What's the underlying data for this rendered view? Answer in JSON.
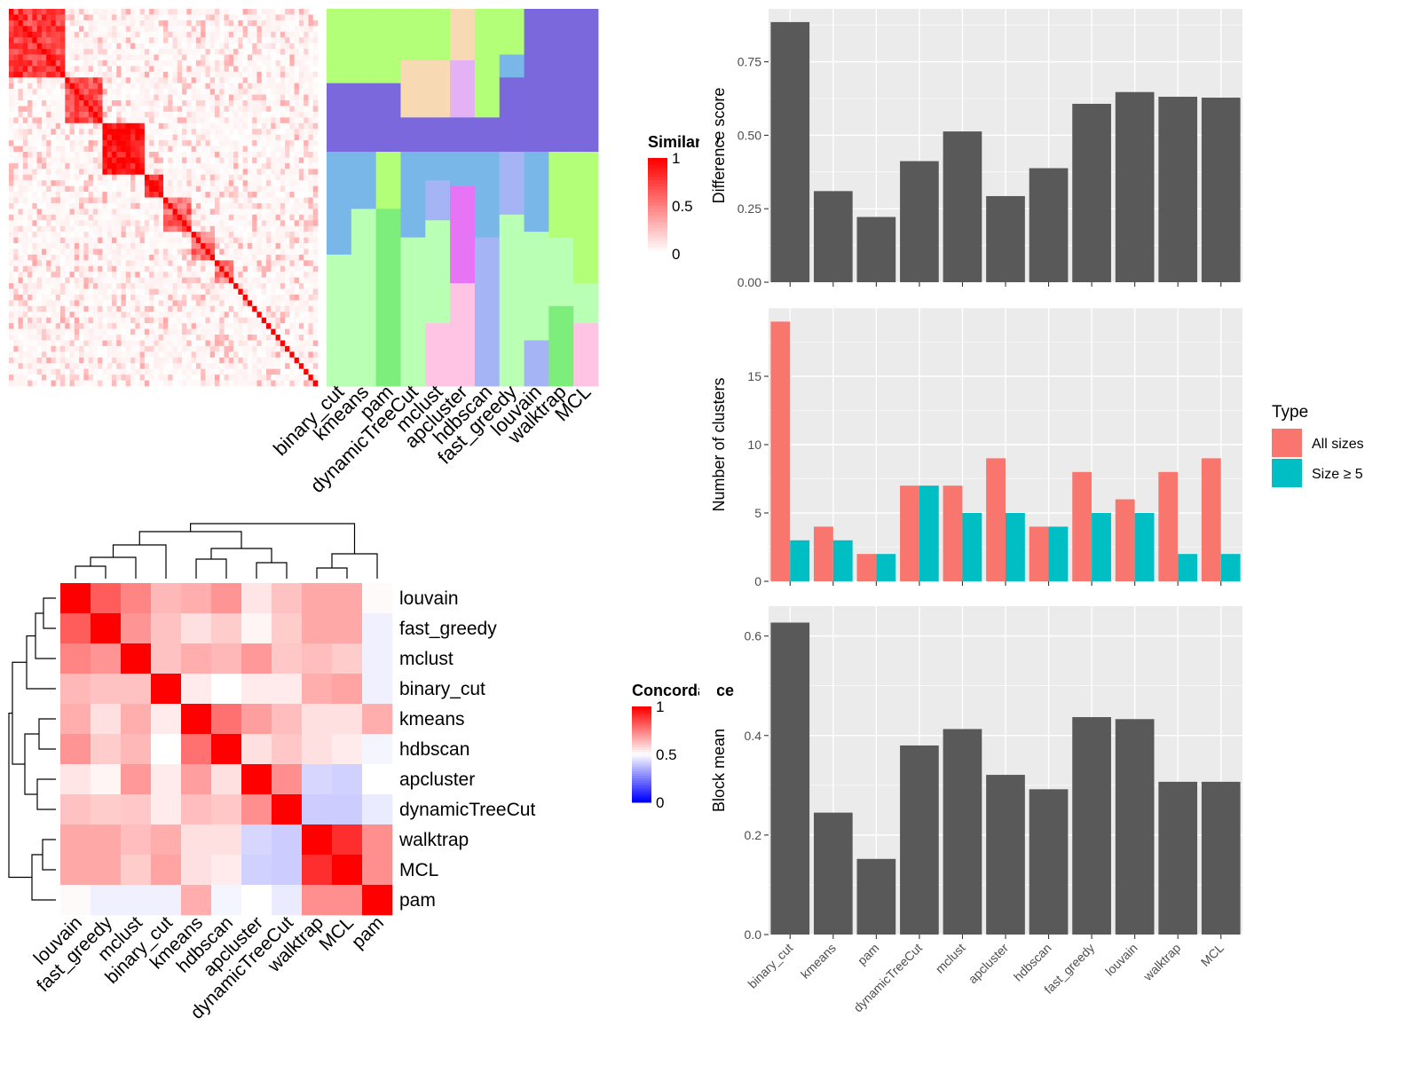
{
  "chart_data": [
    {
      "id": "similarity_heatmap",
      "type": "heatmap",
      "legend": {
        "title": "Similarity",
        "ticks": [
          1,
          0.5,
          0
        ],
        "colors": {
          "low": "#ffffff",
          "high": "#ff0000"
        }
      },
      "block_structure": [
        {
          "start": 0,
          "size": 12,
          "level": 0.75
        },
        {
          "start": 12,
          "size": 8,
          "level": 0.7
        },
        {
          "start": 20,
          "size": 9,
          "level": 0.95
        },
        {
          "start": 29,
          "size": 4,
          "level": 0.85
        },
        {
          "start": 33,
          "size": 6,
          "level": 0.6
        },
        {
          "start": 39,
          "size": 5,
          "level": 0.55
        },
        {
          "start": 44,
          "size": 4,
          "level": 0.5
        }
      ],
      "matrix_size": 66
    },
    {
      "id": "cluster_membership",
      "type": "heatmap",
      "columns": [
        "binary_cut",
        "kmeans",
        "pam",
        "dynamicTreeCut",
        "mclust",
        "apcluster",
        "hdbscan",
        "fast_greedy",
        "louvain",
        "walktrap",
        "MCL"
      ],
      "cluster_colors": [
        "#b3ff77",
        "#7b68dd",
        "#79b7e8",
        "#b9ffb4",
        "#f7d9b4",
        "#e5b1f5",
        "#ffc4e3",
        "#f67d83",
        "#a4b4f5",
        "#e773f5",
        "#7ded7b",
        "#f4f49b",
        "#cccccc"
      ]
    },
    {
      "id": "concordance_heatmap",
      "type": "heatmap",
      "legend": {
        "title": "Concordance",
        "ticks": [
          1,
          0.5,
          0
        ],
        "colors": {
          "low": "#0000ff",
          "mid": "#ffffff",
          "high": "#ff0000"
        }
      },
      "rows": [
        "louvain",
        "fast_greedy",
        "mclust",
        "binary_cut",
        "kmeans",
        "hdbscan",
        "apcluster",
        "dynamicTreeCut",
        "walktrap",
        "MCL",
        "pam"
      ],
      "columns": [
        "louvain",
        "fast_greedy",
        "mclust",
        "binary_cut",
        "kmeans",
        "hdbscan",
        "apcluster",
        "dynamicTreeCut",
        "walktrap",
        "MCL",
        "pam"
      ],
      "values": [
        [
          1.0,
          0.82,
          0.74,
          0.64,
          0.66,
          0.71,
          0.55,
          0.62,
          0.67,
          0.67,
          0.51
        ],
        [
          0.82,
          1.0,
          0.71,
          0.62,
          0.56,
          0.6,
          0.52,
          0.6,
          0.67,
          0.67,
          0.47
        ],
        [
          0.74,
          0.71,
          1.0,
          0.62,
          0.66,
          0.64,
          0.7,
          0.61,
          0.63,
          0.6,
          0.47
        ],
        [
          0.64,
          0.62,
          0.62,
          1.0,
          0.54,
          0.5,
          0.54,
          0.54,
          0.66,
          0.68,
          0.47
        ],
        [
          0.66,
          0.56,
          0.66,
          0.54,
          1.0,
          0.78,
          0.69,
          0.63,
          0.56,
          0.56,
          0.66
        ],
        [
          0.71,
          0.6,
          0.64,
          0.5,
          0.78,
          1.0,
          0.56,
          0.61,
          0.56,
          0.54,
          0.48
        ],
        [
          0.55,
          0.52,
          0.7,
          0.54,
          0.69,
          0.56,
          1.0,
          0.72,
          0.42,
          0.41,
          0.5
        ],
        [
          0.62,
          0.6,
          0.61,
          0.54,
          0.63,
          0.61,
          0.72,
          1.0,
          0.4,
          0.4,
          0.46
        ],
        [
          0.67,
          0.67,
          0.63,
          0.66,
          0.56,
          0.56,
          0.42,
          0.4,
          1.0,
          0.91,
          0.72
        ],
        [
          0.67,
          0.67,
          0.6,
          0.68,
          0.56,
          0.54,
          0.41,
          0.4,
          0.91,
          1.0,
          0.72
        ],
        [
          0.51,
          0.47,
          0.47,
          0.47,
          0.66,
          0.48,
          0.5,
          0.46,
          0.72,
          0.72,
          1.0
        ]
      ]
    },
    {
      "id": "difference_score",
      "type": "bar",
      "categories": [
        "binary_cut",
        "kmeans",
        "pam",
        "dynamicTreeCut",
        "mclust",
        "apcluster",
        "hdbscan",
        "fast_greedy",
        "louvain",
        "walktrap",
        "MCL"
      ],
      "values": [
        0.885,
        0.31,
        0.222,
        0.412,
        0.513,
        0.293,
        0.388,
        0.607,
        0.647,
        0.631,
        0.628
      ],
      "xlabel": "",
      "ylabel": "Difference score",
      "ylim": [
        0,
        0.93
      ],
      "yticks": [
        "0.00",
        "0.25",
        "0.50",
        "0.75"
      ],
      "bar_color": "#595959",
      "grid": true
    },
    {
      "id": "number_of_clusters",
      "type": "bar",
      "categories": [
        "binary_cut",
        "kmeans",
        "pam",
        "dynamicTreeCut",
        "mclust",
        "apcluster",
        "hdbscan",
        "fast_greedy",
        "louvain",
        "walktrap",
        "MCL"
      ],
      "series": [
        {
          "name": "All sizes",
          "color": "#f8766d",
          "values": [
            19,
            4,
            2,
            7,
            7,
            9,
            4,
            8,
            6,
            8,
            9
          ]
        },
        {
          "name": "Size ≥ 5",
          "color": "#00bfc4",
          "values": [
            3,
            3,
            2,
            7,
            5,
            5,
            4,
            5,
            5,
            2,
            2
          ]
        }
      ],
      "xlabel": "",
      "ylabel": "Number of clusters",
      "ylim": [
        0,
        20
      ],
      "yticks": [
        "0",
        "5",
        "10",
        "15"
      ],
      "legend": {
        "title": "Type",
        "position": "right"
      },
      "grid": true
    },
    {
      "id": "block_mean",
      "type": "bar",
      "categories": [
        "binary_cut",
        "kmeans",
        "pam",
        "dynamicTreeCut",
        "mclust",
        "apcluster",
        "hdbscan",
        "fast_greedy",
        "louvain",
        "walktrap",
        "MCL"
      ],
      "values": [
        0.627,
        0.245,
        0.152,
        0.38,
        0.413,
        0.321,
        0.292,
        0.437,
        0.433,
        0.307,
        0.307
      ],
      "xlabel": "",
      "ylabel": "Block mean",
      "ylim": [
        0,
        0.66
      ],
      "yticks": [
        "0.0",
        "0.2",
        "0.4",
        "0.6"
      ],
      "bar_color": "#595959",
      "grid": true
    }
  ]
}
